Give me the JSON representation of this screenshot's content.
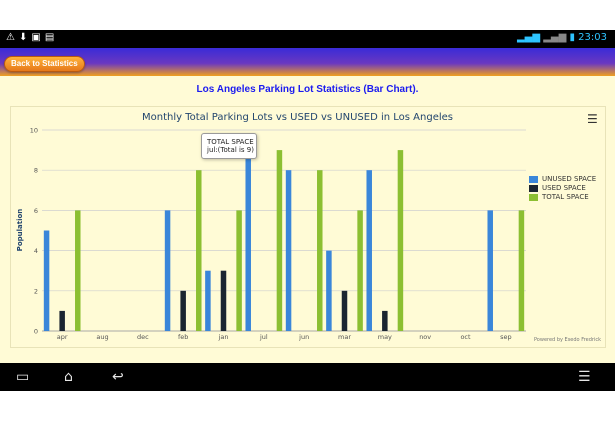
{
  "status_bar": {
    "left_icons": [
      "warning-icon",
      "download-icon",
      "image-icon",
      "chat-icon"
    ],
    "time": "23:03"
  },
  "header": {
    "back_label": "Back to Statistics"
  },
  "page_title": "Los Angeles Parking Lot Statistics (Bar Chart).",
  "chart_data": {
    "type": "bar",
    "title": "Monthly Total Parking Lots vs USED vs UNUSED in Los Angeles",
    "xlabel": "",
    "ylabel": "Population",
    "ylim": [
      0,
      10
    ],
    "yticks": [
      0,
      2,
      4,
      6,
      8,
      10
    ],
    "categories": [
      "apr",
      "aug",
      "dec",
      "feb",
      "jan",
      "jul",
      "jun",
      "mar",
      "may",
      "nov",
      "oct",
      "sep"
    ],
    "series": [
      {
        "name": "UNUSED SPACE",
        "color": "#3a86d9",
        "values": [
          5,
          0,
          0,
          6,
          3,
          9,
          8,
          4,
          8,
          0,
          0,
          6
        ]
      },
      {
        "name": "USED SPACE",
        "color": "#1b2530",
        "values": [
          1,
          0,
          0,
          2,
          3,
          0,
          0,
          2,
          1,
          0,
          0,
          0
        ]
      },
      {
        "name": "TOTAL SPACE",
        "color": "#8cbf32",
        "values": [
          6,
          0,
          0,
          8,
          6,
          9,
          8,
          6,
          9,
          0,
          0,
          6
        ]
      }
    ],
    "legend_position": "right",
    "grid": true,
    "tooltip": {
      "series": "TOTAL SPACE",
      "text": "jul:(Total is 9)"
    },
    "credit": "Powered by Esedo Fredrick"
  }
}
